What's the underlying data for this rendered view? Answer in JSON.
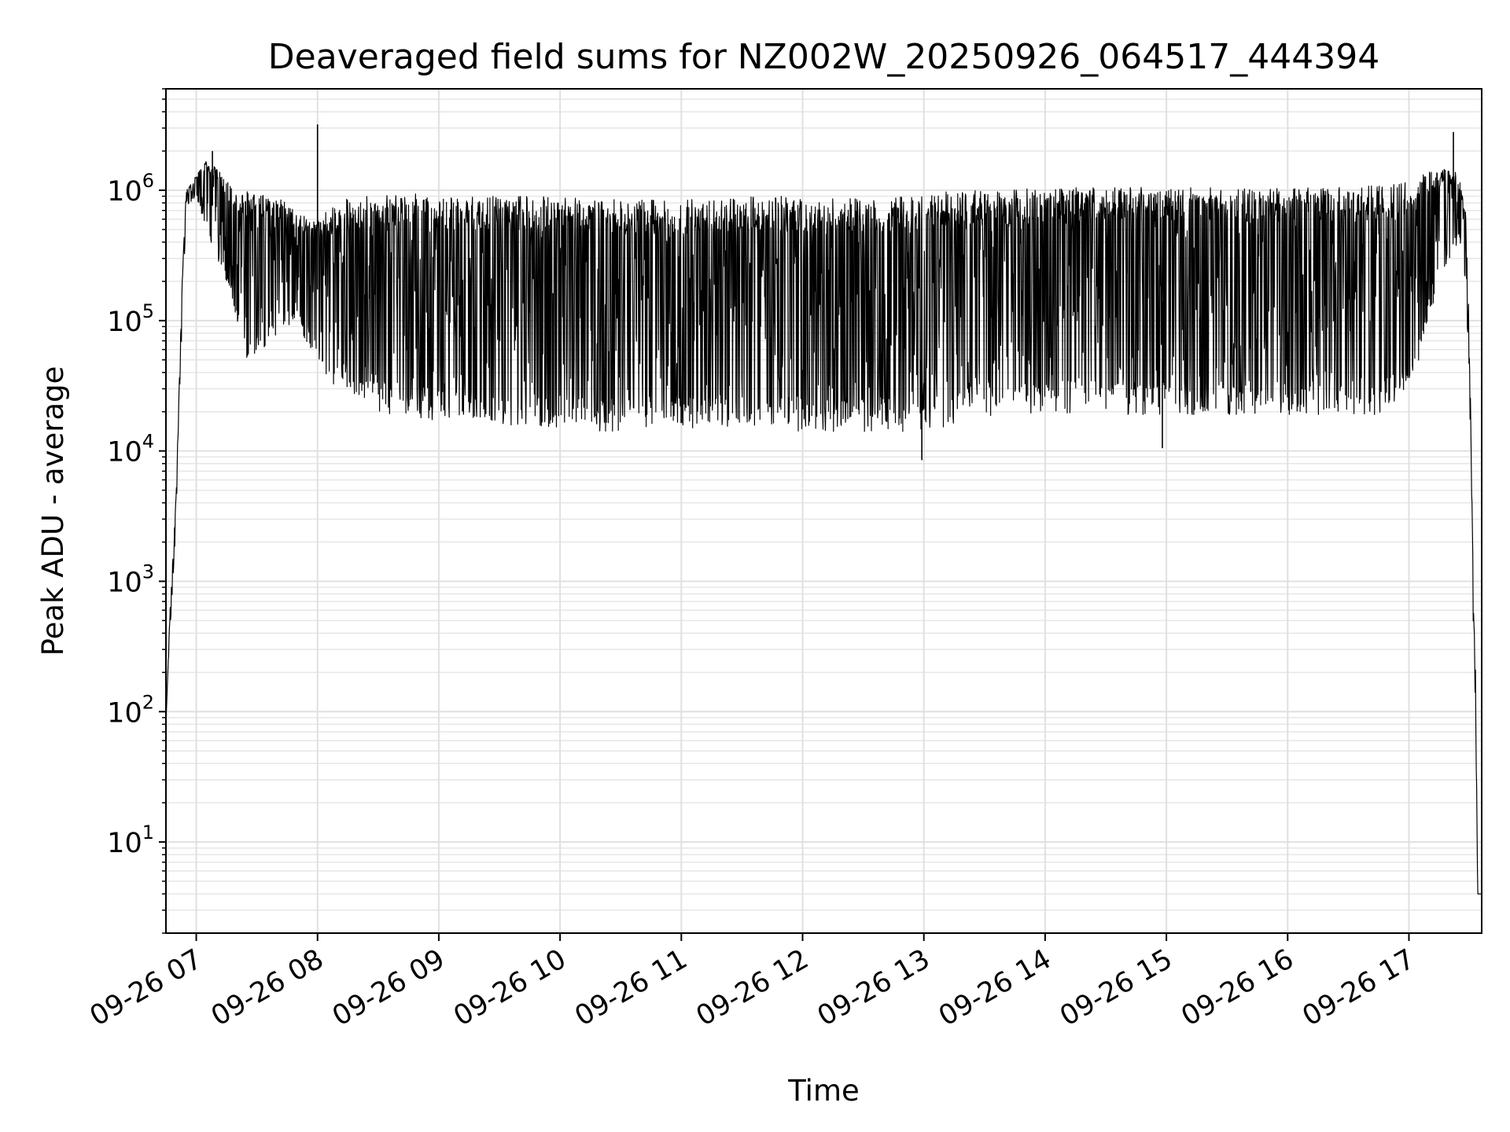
{
  "chart_data": {
    "type": "line",
    "title": "Deaveraged field sums for NZ002W_20250926_064517_444394",
    "xlabel": "Time",
    "ylabel": "Peak ADU - average",
    "y_scale": "log",
    "ylim": [
      2,
      6000000
    ],
    "xlim": [
      "09-26 06:45",
      "09-26 17:36"
    ],
    "x_tick_labels": [
      "09-26 07",
      "09-26 08",
      "09-26 09",
      "09-26 10",
      "09-26 11",
      "09-26 12",
      "09-26 13",
      "09-26 14",
      "09-26 15",
      "09-26 16",
      "09-26 17"
    ],
    "y_tick_labels": [
      {
        "value": 10,
        "base": "10",
        "exp": "1"
      },
      {
        "value": 100,
        "base": "10",
        "exp": "2"
      },
      {
        "value": 1000,
        "base": "10",
        "exp": "3"
      },
      {
        "value": 10000,
        "base": "10",
        "exp": "4"
      },
      {
        "value": 100000,
        "base": "10",
        "exp": "5"
      },
      {
        "value": 1000000,
        "base": "10",
        "exp": "6"
      }
    ],
    "grid": true,
    "line_color": "#000000",
    "series": [
      {
        "envelope": {
          "x": [
            "06:45",
            "06:47",
            "06:50",
            "06:53",
            "06:55",
            "06:57",
            "07:00",
            "07:05",
            "07:10",
            "07:15",
            "07:20",
            "07:25",
            "07:30",
            "07:40",
            "07:50",
            "08:00",
            "08:05",
            "08:15",
            "08:30",
            "08:45",
            "09:00",
            "09:30",
            "10:00",
            "10:30",
            "11:00",
            "11:30",
            "12:00",
            "12:30",
            "13:00",
            "13:10",
            "13:20",
            "13:40",
            "14:00",
            "14:30",
            "15:00",
            "15:30",
            "16:00",
            "16:30",
            "16:45",
            "17:00",
            "17:10",
            "17:20",
            "17:25",
            "17:28",
            "17:30",
            "17:32",
            "17:33",
            "17:34",
            "17:36"
          ],
          "peak": [
            80,
            600,
            4500,
            200000,
            1000000,
            1100000,
            1300000,
            1700000,
            1500000,
            1200000,
            900000,
            1000000,
            1000000,
            900000,
            700000,
            600000,
            700000,
            900000,
            900000,
            950000,
            900000,
            900000,
            900000,
            850000,
            850000,
            900000,
            900000,
            900000,
            900000,
            1000000,
            1000000,
            1000000,
            1050000,
            1050000,
            1050000,
            1050000,
            1050000,
            1050000,
            1100000,
            1200000,
            1400000,
            1500000,
            1300000,
            700000,
            80000,
            600,
            200,
            4,
            4
          ],
          "trough": [
            80,
            400,
            2500,
            100000,
            700000,
            800000,
            900000,
            500000,
            300000,
            200000,
            100000,
            50000,
            50000,
            80000,
            90000,
            50000,
            30000,
            30000,
            20000,
            18000,
            17000,
            16000,
            14000,
            14000,
            15000,
            15000,
            14000,
            14000,
            14000,
            15000,
            18000,
            19000,
            19000,
            19000,
            19000,
            19000,
            19000,
            19000,
            19000,
            25000,
            100000,
            300000,
            400000,
            200000,
            30000,
            300,
            100,
            4,
            4
          ]
        },
        "spikes": [
          {
            "x": "08:00",
            "y": 3200000
          },
          {
            "x": "17:22",
            "y": 2800000
          },
          {
            "x": "07:08",
            "y": 2000000
          },
          {
            "x": "12:59",
            "y": 8500
          },
          {
            "x": "14:58",
            "y": 10500
          }
        ]
      }
    ]
  }
}
